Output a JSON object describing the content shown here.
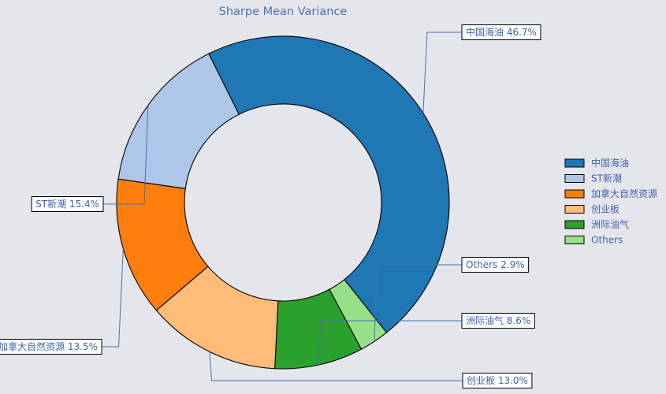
{
  "chart_data": {
    "type": "pie",
    "donut": true,
    "title": "Sharpe Mean Variance",
    "slices": [
      {
        "label": "中国海油",
        "value": 46.7,
        "display": "中国海油 46.7%",
        "color": "#1f77b4"
      },
      {
        "label": "Others",
        "value": 2.9,
        "display": "Others 2.9%",
        "color": "#98df8a"
      },
      {
        "label": "洲际油气",
        "value": 8.6,
        "display": "洲际油气 8.6%",
        "color": "#2ca02c"
      },
      {
        "label": "创业板",
        "value": 13.0,
        "display": "创业板 13.0%",
        "color": "#ffbb78"
      },
      {
        "label": "加拿大自然资源",
        "value": 13.5,
        "display": "加拿大自然资源 13.5%",
        "color": "#ff7f0e"
      },
      {
        "label": "ST新潮",
        "value": 15.4,
        "display": "ST新潮 15.4%",
        "color": "#aec7e8"
      }
    ],
    "legend": {
      "placement": "right",
      "entries": [
        {
          "label": "中国海油",
          "color": "#1f77b4"
        },
        {
          "label": "ST新潮",
          "color": "#aec7e8"
        },
        {
          "label": "加拿大自然资源",
          "color": "#ff7f0e"
        },
        {
          "label": "创业板",
          "color": "#ffbb78"
        },
        {
          "label": "洲际油气",
          "color": "#2ca02c"
        },
        {
          "label": "Others",
          "color": "#98df8a"
        }
      ]
    },
    "label_line_color": "#4a6fb5",
    "background": "#e5e6ec"
  }
}
